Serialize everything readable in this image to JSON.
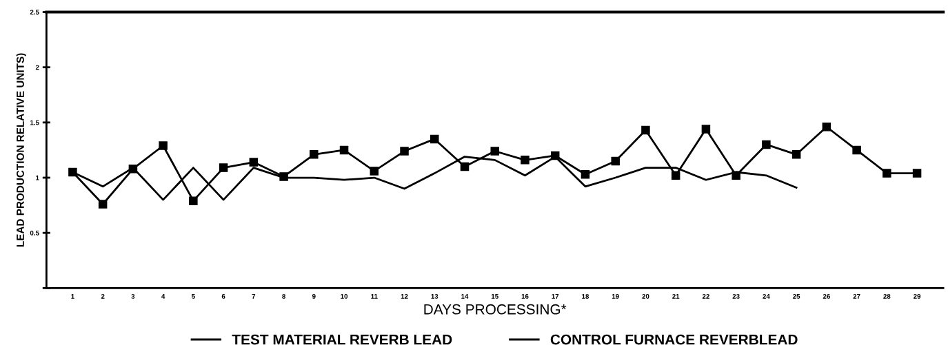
{
  "chart_data": {
    "type": "line",
    "xlabel": "DAYS PROCESSING*",
    "ylabel": "LEAD PRODUCTION RELATIVE UNITS)",
    "categories": [
      "1",
      "2",
      "3",
      "4",
      "5",
      "6",
      "7",
      "8",
      "9",
      "10",
      "11",
      "12",
      "13",
      "14",
      "15",
      "16",
      "17",
      "18",
      "19",
      "20",
      "21",
      "22",
      "23",
      "24",
      "25",
      "26",
      "27",
      "28",
      "29"
    ],
    "series": [
      {
        "name": "TEST MATERIAL REVERB LEAD",
        "color": "#000000",
        "marker": "square",
        "values": [
          1.05,
          0.76,
          1.08,
          1.29,
          0.79,
          1.09,
          1.14,
          1.01,
          1.21,
          1.25,
          1.06,
          1.24,
          1.35,
          1.1,
          1.24,
          1.16,
          1.2,
          1.03,
          1.15,
          1.43,
          1.02,
          1.44,
          1.02,
          1.3,
          1.21,
          1.46,
          1.25,
          1.04,
          1.04
        ]
      },
      {
        "name": "CONTROL FURNACE REVERBLEAD",
        "color": "#000000",
        "marker": "none",
        "values": [
          1.05,
          0.92,
          1.09,
          0.8,
          1.09,
          0.8,
          1.09,
          1.0,
          1.0,
          0.98,
          1.0,
          0.9,
          1.04,
          1.19,
          1.16,
          1.02,
          1.19,
          0.92,
          1.0,
          1.09,
          1.09,
          0.98,
          1.05,
          1.02,
          0.91,
          null,
          null,
          null,
          null
        ]
      }
    ],
    "ylim": [
      0,
      2.5
    ],
    "yticks": [
      {
        "value": 0,
        "label": null
      },
      0.5,
      1,
      1.5,
      2,
      2.5
    ],
    "grid": false,
    "legend": "bottom",
    "line_style": "solid"
  }
}
